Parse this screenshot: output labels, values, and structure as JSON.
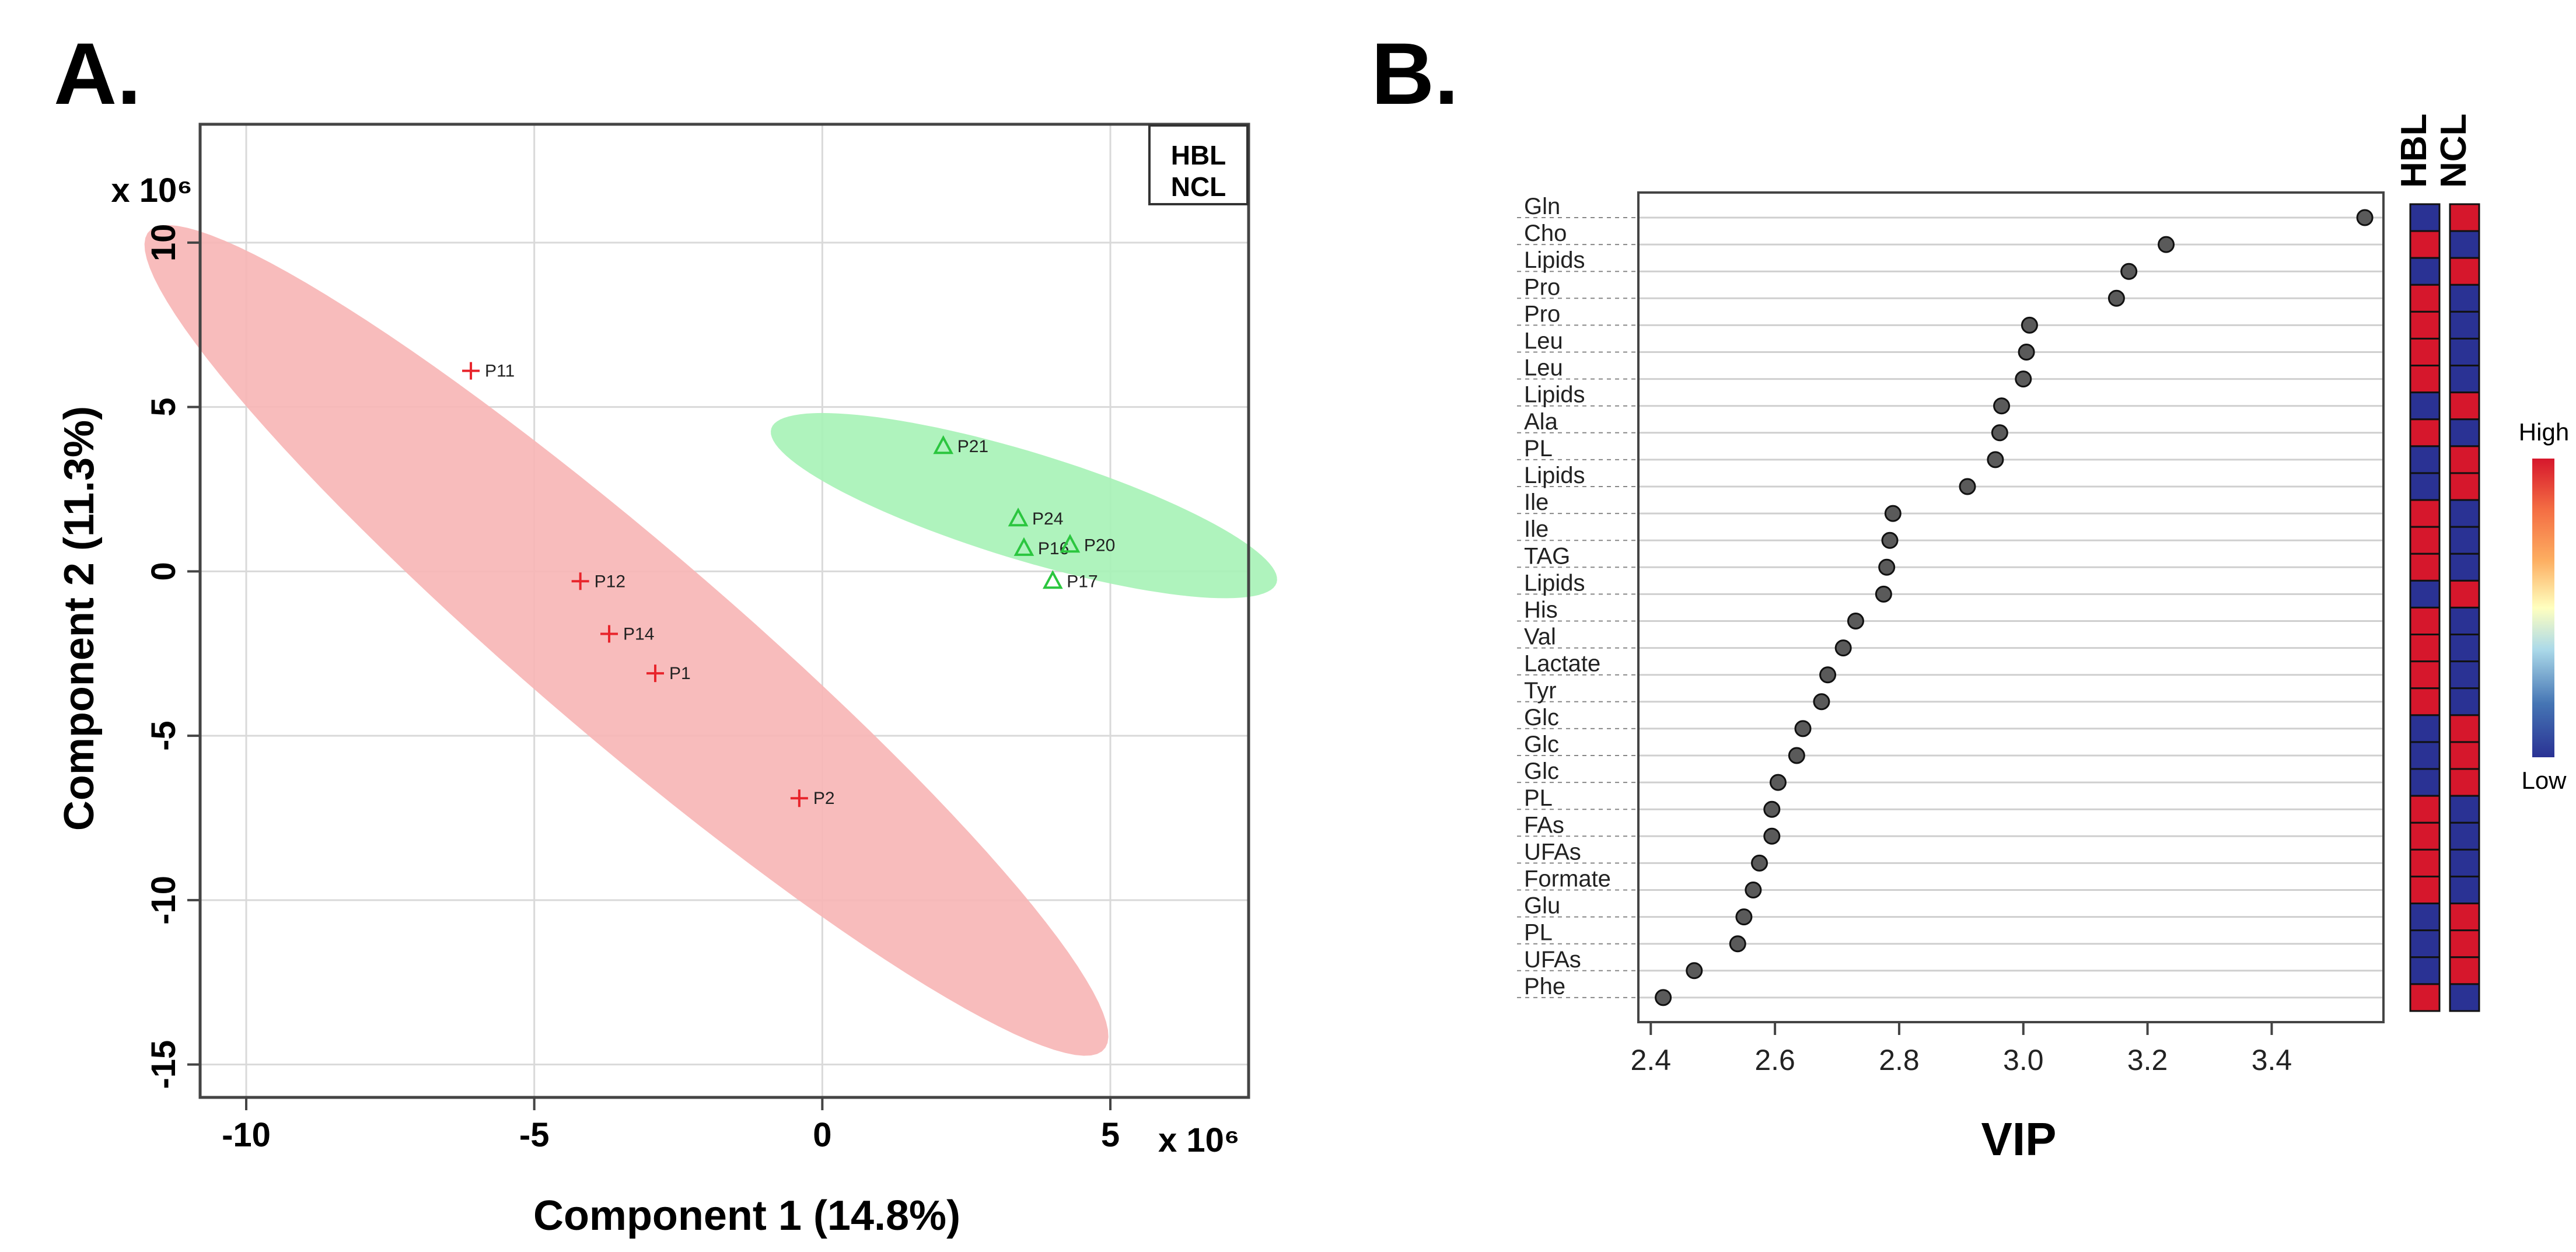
{
  "chart_data": [
    {
      "type": "scatter",
      "panel_label": "A.",
      "title": "",
      "xlabel": "Component 1 (14.8%)",
      "ylabel": "Component 2 (11.3%)",
      "x_multiplier": "x 10⁶",
      "y_multiplier": "x 10⁶",
      "xlim": [
        -10.8,
        7.4
      ],
      "ylim": [
        -16.0,
        13.6
      ],
      "xticks": [
        -10,
        -5,
        0,
        5
      ],
      "xtick_labels": [
        "-10",
        "-5",
        "0",
        "5"
      ],
      "yticks": [
        -15,
        -10,
        -5,
        0,
        5,
        10
      ],
      "ytick_labels": [
        "-15",
        "-10",
        "-5",
        "0",
        "5",
        "10"
      ],
      "grid": true,
      "legend": {
        "position": "top-right",
        "entries": [
          "HBL",
          "NCL"
        ]
      },
      "series": [
        {
          "name": "HBL",
          "marker": "plus",
          "color": "#e8242b",
          "ellipse_fill": "#f7b5b5",
          "ellipse": {
            "center": [
              -3.4,
              -2.1
            ],
            "semi_major": 15.0,
            "semi_minor": 2.15,
            "angle_deg": -57
          },
          "points": [
            {
              "label": "P11",
              "x": -6.1,
              "y": 6.1
            },
            {
              "label": "P12",
              "x": -4.2,
              "y": -0.3
            },
            {
              "label": "P14",
              "x": -3.7,
              "y": -1.9
            },
            {
              "label": "P1",
              "x": -2.9,
              "y": -3.1
            },
            {
              "label": "P2",
              "x": -0.4,
              "y": -6.9
            }
          ]
        },
        {
          "name": "NCL",
          "marker": "triangle",
          "color": "#2bc63f",
          "ellipse_fill": "#a6f2b6",
          "ellipse": {
            "center": [
              3.5,
              2.0
            ],
            "semi_major": 5.0,
            "semi_minor": 1.5,
            "angle_deg": -30
          },
          "points": [
            {
              "label": "P21",
              "x": 2.1,
              "y": 3.8
            },
            {
              "label": "P24",
              "x": 3.4,
              "y": 1.6
            },
            {
              "label": "P16",
              "x": 3.5,
              "y": 0.7
            },
            {
              "label": "P20",
              "x": 4.3,
              "y": 0.8
            },
            {
              "label": "P17",
              "x": 4.0,
              "y": -0.3
            }
          ]
        }
      ]
    },
    {
      "type": "dot",
      "panel_label": "B.",
      "title": "",
      "xlabel": "VIP",
      "ylabel": "",
      "xlim": [
        2.38,
        3.58
      ],
      "xticks": [
        2.4,
        2.6,
        2.8,
        3.0,
        3.2,
        3.4
      ],
      "xtick_labels": [
        "2.4",
        "2.6",
        "2.8",
        "3.0",
        "3.2",
        "3.4"
      ],
      "categories": [
        "Gln",
        "Cho",
        "Lipids",
        "Pro",
        "Pro",
        "Leu",
        "Leu",
        "Lipids",
        "Ala",
        "PL",
        "Lipids",
        "Ile",
        "Ile",
        "TAG",
        "Lipids",
        "His",
        "Val",
        "Lactate",
        "Tyr",
        "Glc",
        "Glc",
        "Glc",
        "PL",
        "FAs",
        "UFAs",
        "Formate",
        "Glu",
        "PL",
        "UFAs",
        "Phe"
      ],
      "values": [
        3.55,
        3.23,
        3.17,
        3.15,
        3.01,
        3.005,
        3.0,
        2.965,
        2.962,
        2.955,
        2.91,
        2.79,
        2.785,
        2.78,
        2.775,
        2.73,
        2.71,
        2.685,
        2.675,
        2.645,
        2.635,
        2.605,
        2.595,
        2.595,
        2.575,
        2.565,
        2.55,
        2.54,
        2.47,
        2.42
      ],
      "heatmap": {
        "columns": [
          "HBL",
          "NCL"
        ],
        "values_hbl": [
          "low",
          "high",
          "low",
          "high",
          "high",
          "high",
          "high",
          "low",
          "high",
          "low",
          "low",
          "high",
          "high",
          "high",
          "low",
          "high",
          "high",
          "high",
          "high",
          "low",
          "low",
          "low",
          "high",
          "high",
          "high",
          "high",
          "low",
          "low",
          "low",
          "high"
        ],
        "colors": {
          "high": "#d6172c",
          "low": "#2a3294"
        }
      },
      "colorbar": {
        "high_label": "High",
        "low_label": "Low",
        "colors": [
          "#2a3294",
          "#4575b4",
          "#abd9e9",
          "#ffffbf",
          "#fdae61",
          "#f46d43",
          "#d6172c"
        ]
      }
    }
  ]
}
